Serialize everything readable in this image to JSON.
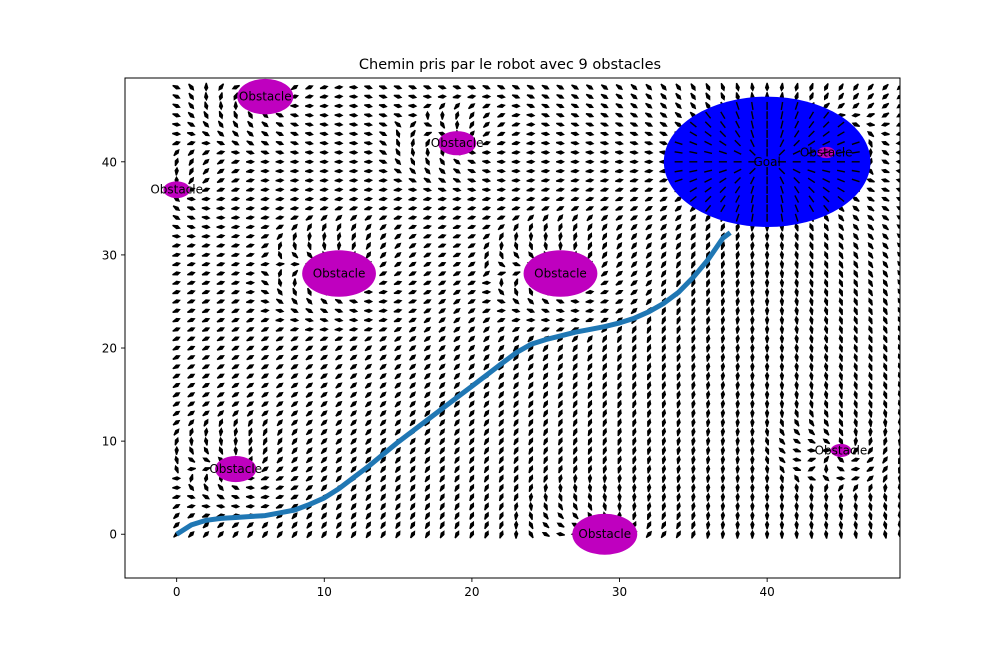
{
  "chart_data": {
    "type": "scatter",
    "title": "Chemin pris par le robot avec 9 obstacles",
    "xlabel": "",
    "ylabel": "",
    "xlim": [
      -3.5,
      49
    ],
    "ylim": [
      -4.7,
      49
    ],
    "xticks": [
      0,
      10,
      20,
      30,
      40
    ],
    "yticks": [
      0,
      10,
      20,
      30,
      40
    ],
    "grid": false,
    "obstacle_label": "Obstacle",
    "goal_label": "Goal",
    "colors": {
      "obstacle": "#bf00bf",
      "goal": "#0000ff",
      "path": "#1f77b4",
      "arrows": "#000000"
    },
    "goal": {
      "x": 40,
      "y": 40,
      "rx": 7,
      "ry": 7
    },
    "obstacles": [
      {
        "x": 6,
        "y": 47,
        "rx": 1.9,
        "ry": 1.9
      },
      {
        "x": 19,
        "y": 42,
        "rx": 1.3,
        "ry": 1.3
      },
      {
        "x": 0,
        "y": 37,
        "rx": 0.9,
        "ry": 0.9
      },
      {
        "x": 11,
        "y": 28,
        "rx": 2.5,
        "ry": 2.5
      },
      {
        "x": 26,
        "y": 28,
        "rx": 2.5,
        "ry": 2.5
      },
      {
        "x": 4,
        "y": 7,
        "rx": 1.4,
        "ry": 1.4
      },
      {
        "x": 29,
        "y": 0,
        "rx": 2.2,
        "ry": 2.2
      },
      {
        "x": 45,
        "y": 9,
        "rx": 0.7,
        "ry": 0.7
      },
      {
        "x": 44,
        "y": 41,
        "rx": 0.6,
        "ry": 0.6
      }
    ],
    "path": {
      "x": [
        0,
        1,
        2,
        3,
        4,
        5,
        6,
        7,
        8,
        9,
        10,
        11,
        12,
        13,
        14,
        15,
        16,
        17,
        18,
        19,
        20,
        21,
        22,
        23,
        24,
        25,
        26,
        27,
        28,
        29,
        30,
        31,
        32,
        33,
        34,
        35,
        36,
        37,
        37.5
      ],
      "y": [
        0,
        1,
        1.5,
        1.7,
        1.8,
        1.9,
        2,
        2.3,
        2.6,
        3.2,
        3.9,
        4.9,
        6.1,
        7.3,
        8.6,
        9.9,
        11.1,
        12.3,
        13.5,
        14.7,
        15.9,
        17.1,
        18.3,
        19.5,
        20.4,
        20.9,
        21.3,
        21.7,
        22,
        22.3,
        22.7,
        23.2,
        23.9,
        24.8,
        26,
        27.6,
        29.5,
        31.8,
        32.4
      ]
    },
    "field": {
      "x_range": [
        0,
        49
      ],
      "y_range": [
        0,
        48
      ],
      "step": 1
    }
  }
}
